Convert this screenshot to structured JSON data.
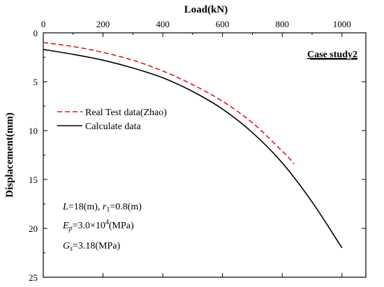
{
  "chart_data": {
    "type": "line",
    "xlabel": "Load(kN)",
    "ylabel": "Displacement(mm)",
    "x_axis_position": "top",
    "y_axis_inverted": true,
    "xlim": [
      0,
      1080
    ],
    "ylim": [
      0,
      25
    ],
    "x_ticks": [
      "0",
      "200",
      "400",
      "600",
      "800",
      "1000"
    ],
    "y_ticks": [
      "0",
      "5",
      "10",
      "15",
      "20",
      "25"
    ],
    "grid": false,
    "legend_position": "left",
    "annotation": "Case study2",
    "series": [
      {
        "name": "Real Test data(Zhao)",
        "style": "dashed",
        "color": "#e0141e",
        "x": [
          0,
          100,
          200,
          300,
          400,
          500,
          600,
          700,
          800,
          840
        ],
        "y": [
          1.0,
          1.4,
          2.0,
          2.8,
          3.9,
          5.3,
          7.0,
          9.2,
          12.1,
          13.4
        ]
      },
      {
        "name": "Calculate data",
        "style": "solid",
        "color": "#000000",
        "x": [
          0,
          100,
          200,
          300,
          400,
          500,
          600,
          700,
          800,
          900,
          1000
        ],
        "y": [
          1.7,
          2.2,
          2.8,
          3.6,
          4.6,
          6.0,
          7.8,
          10.2,
          13.3,
          17.3,
          22.0
        ]
      }
    ],
    "params": {
      "line1": {
        "L_sym": "L",
        "L_val": "=18(m), ",
        "r_sym": "r",
        "r_sub": "1",
        "r_val": "=0.8(m)"
      },
      "line2": {
        "E_sym": "E",
        "E_sub": "p",
        "E_val": "=3.0×10",
        "E_sup": "4",
        "E_unit": "(MPa)"
      },
      "line3": {
        "G_sym": "G",
        "G_sub": "s",
        "G_val": "=3.18(MPa)"
      }
    }
  }
}
